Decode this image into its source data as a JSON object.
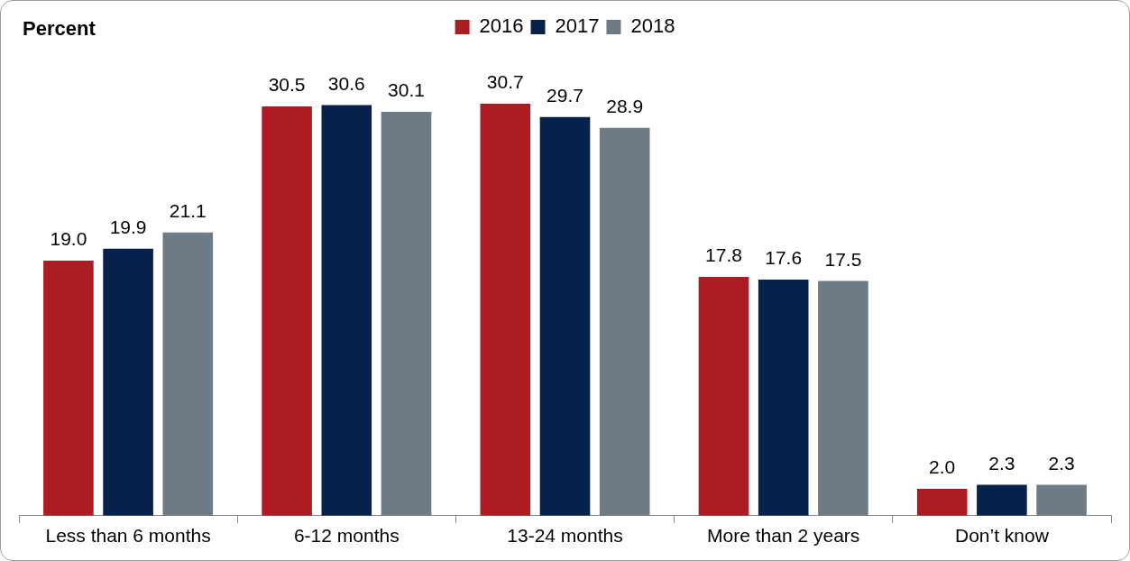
{
  "chart_data": {
    "type": "bar",
    "ylabel": "Percent",
    "categories": [
      "Less than 6 months",
      "6-12 months",
      "13-24 months",
      "More than 2 years",
      "Don’t know"
    ],
    "series": [
      {
        "name": "2016",
        "color": "#ae1c23",
        "values": [
          19.0,
          30.5,
          30.7,
          17.8,
          2.0
        ],
        "value_labels": [
          "19.0",
          "30.5",
          "30.7",
          "17.8",
          "2.0"
        ]
      },
      {
        "name": "2017",
        "color": "#06224a",
        "values": [
          19.9,
          30.6,
          29.7,
          17.6,
          2.3
        ],
        "value_labels": [
          "19.9",
          "30.6",
          "29.7",
          "17.6",
          "2.3"
        ]
      },
      {
        "name": "2018",
        "color": "#6d7b87",
        "values": [
          21.1,
          30.1,
          28.9,
          17.5,
          2.3
        ],
        "value_labels": [
          "21.1",
          "30.1",
          "28.9",
          "17.5",
          "2.3"
        ]
      }
    ],
    "legend": "top",
    "grid": false
  }
}
